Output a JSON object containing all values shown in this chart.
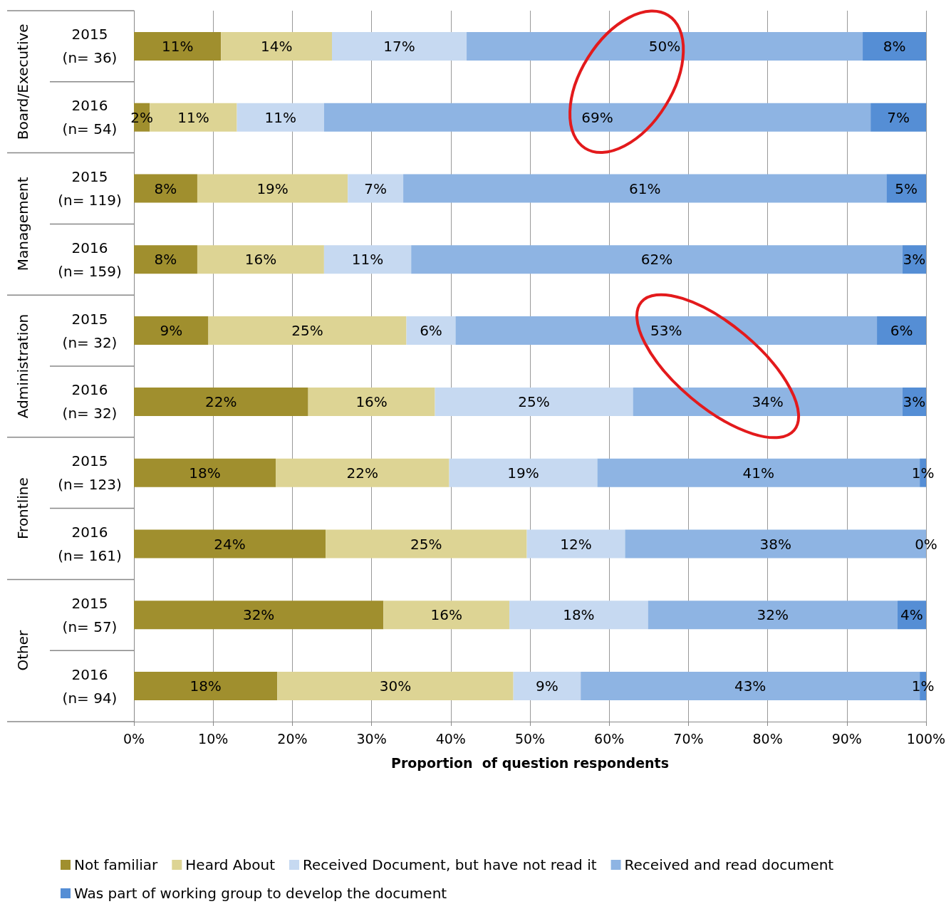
{
  "chart_data": {
    "type": "bar",
    "orientation": "horizontal",
    "stacked": true,
    "categories": [
      "2015\n(n= 36)",
      "2016\n(n= 54)",
      "2015\n(n= 119)",
      "2016\n(n= 159)",
      "2015\n(n= 32)",
      "2016\n(n= 32)",
      "2015\n(n= 123)",
      "2016\n(n= 161)",
      "2015\n(n= 57)",
      "2016\n(n= 94)"
    ],
    "series": [
      {
        "name": "Not familiar",
        "color": "#a08f2e",
        "values": [
          11,
          2,
          8,
          8,
          9.4,
          22,
          17.9,
          24.2,
          31.5,
          18.1
        ],
        "value_labels": [
          "11%",
          "2%",
          "8%",
          "8%",
          "9%",
          "22%",
          "18%",
          "24%",
          "32%",
          "18%"
        ]
      },
      {
        "name": "Heard About",
        "color": "#ddd494",
        "values": [
          14,
          11,
          19,
          16,
          25,
          16,
          21.9,
          25.4,
          15.9,
          29.8
        ],
        "value_labels": [
          "14%",
          "11%",
          "19%",
          "16%",
          "25%",
          "16%",
          "22%",
          "25%",
          "16%",
          "30%"
        ]
      },
      {
        "name": "Received Document, but have not read it",
        "color": "#c6d9f1",
        "values": [
          17,
          11,
          7,
          11,
          6.2,
          25,
          18.7,
          12.4,
          17.5,
          8.5
        ],
        "value_labels": [
          "17%",
          "11%",
          "7%",
          "11%",
          "6%",
          "25%",
          "19%",
          "12%",
          "18%",
          "9%"
        ]
      },
      {
        "name": "Received and read document",
        "color": "#8eb4e3",
        "values": [
          50,
          69,
          61,
          62,
          53.2,
          34,
          40.7,
          38,
          31.5,
          42.8
        ],
        "value_labels": [
          "50%",
          "69%",
          "61%",
          "62%",
          "53%",
          "34%",
          "41%",
          "38%",
          "32%",
          "43%"
        ]
      },
      {
        "name": "Was part of working group to develop the document",
        "color": "#558ed5",
        "values": [
          8,
          7,
          5,
          3,
          6.2,
          3,
          0.8,
          0,
          3.6,
          0.8
        ],
        "value_labels": [
          "8%",
          "7%",
          "5%",
          "3%",
          "6%",
          "3%",
          "1%",
          "0%",
          "4%",
          "1%"
        ]
      }
    ],
    "xlabel": "Proportion  of question respondents",
    "xlim": [
      0,
      100
    ],
    "xticks": [
      {
        "value": 0,
        "label": "0%"
      },
      {
        "value": 10,
        "label": "10%"
      },
      {
        "value": 20,
        "label": "20%"
      },
      {
        "value": 30,
        "label": "30%"
      },
      {
        "value": 40,
        "label": "40%"
      },
      {
        "value": 50,
        "label": "50%"
      },
      {
        "value": 60,
        "label": "60%"
      },
      {
        "value": 70,
        "label": "70%"
      },
      {
        "value": 80,
        "label": "80%"
      },
      {
        "value": 90,
        "label": "90%"
      },
      {
        "value": 100,
        "label": "100%"
      }
    ],
    "annotations": [
      "Board/Executive",
      "Management",
      "Administration",
      "Frontline",
      "Other"
    ],
    "grid": "x",
    "legend": "bottom"
  }
}
